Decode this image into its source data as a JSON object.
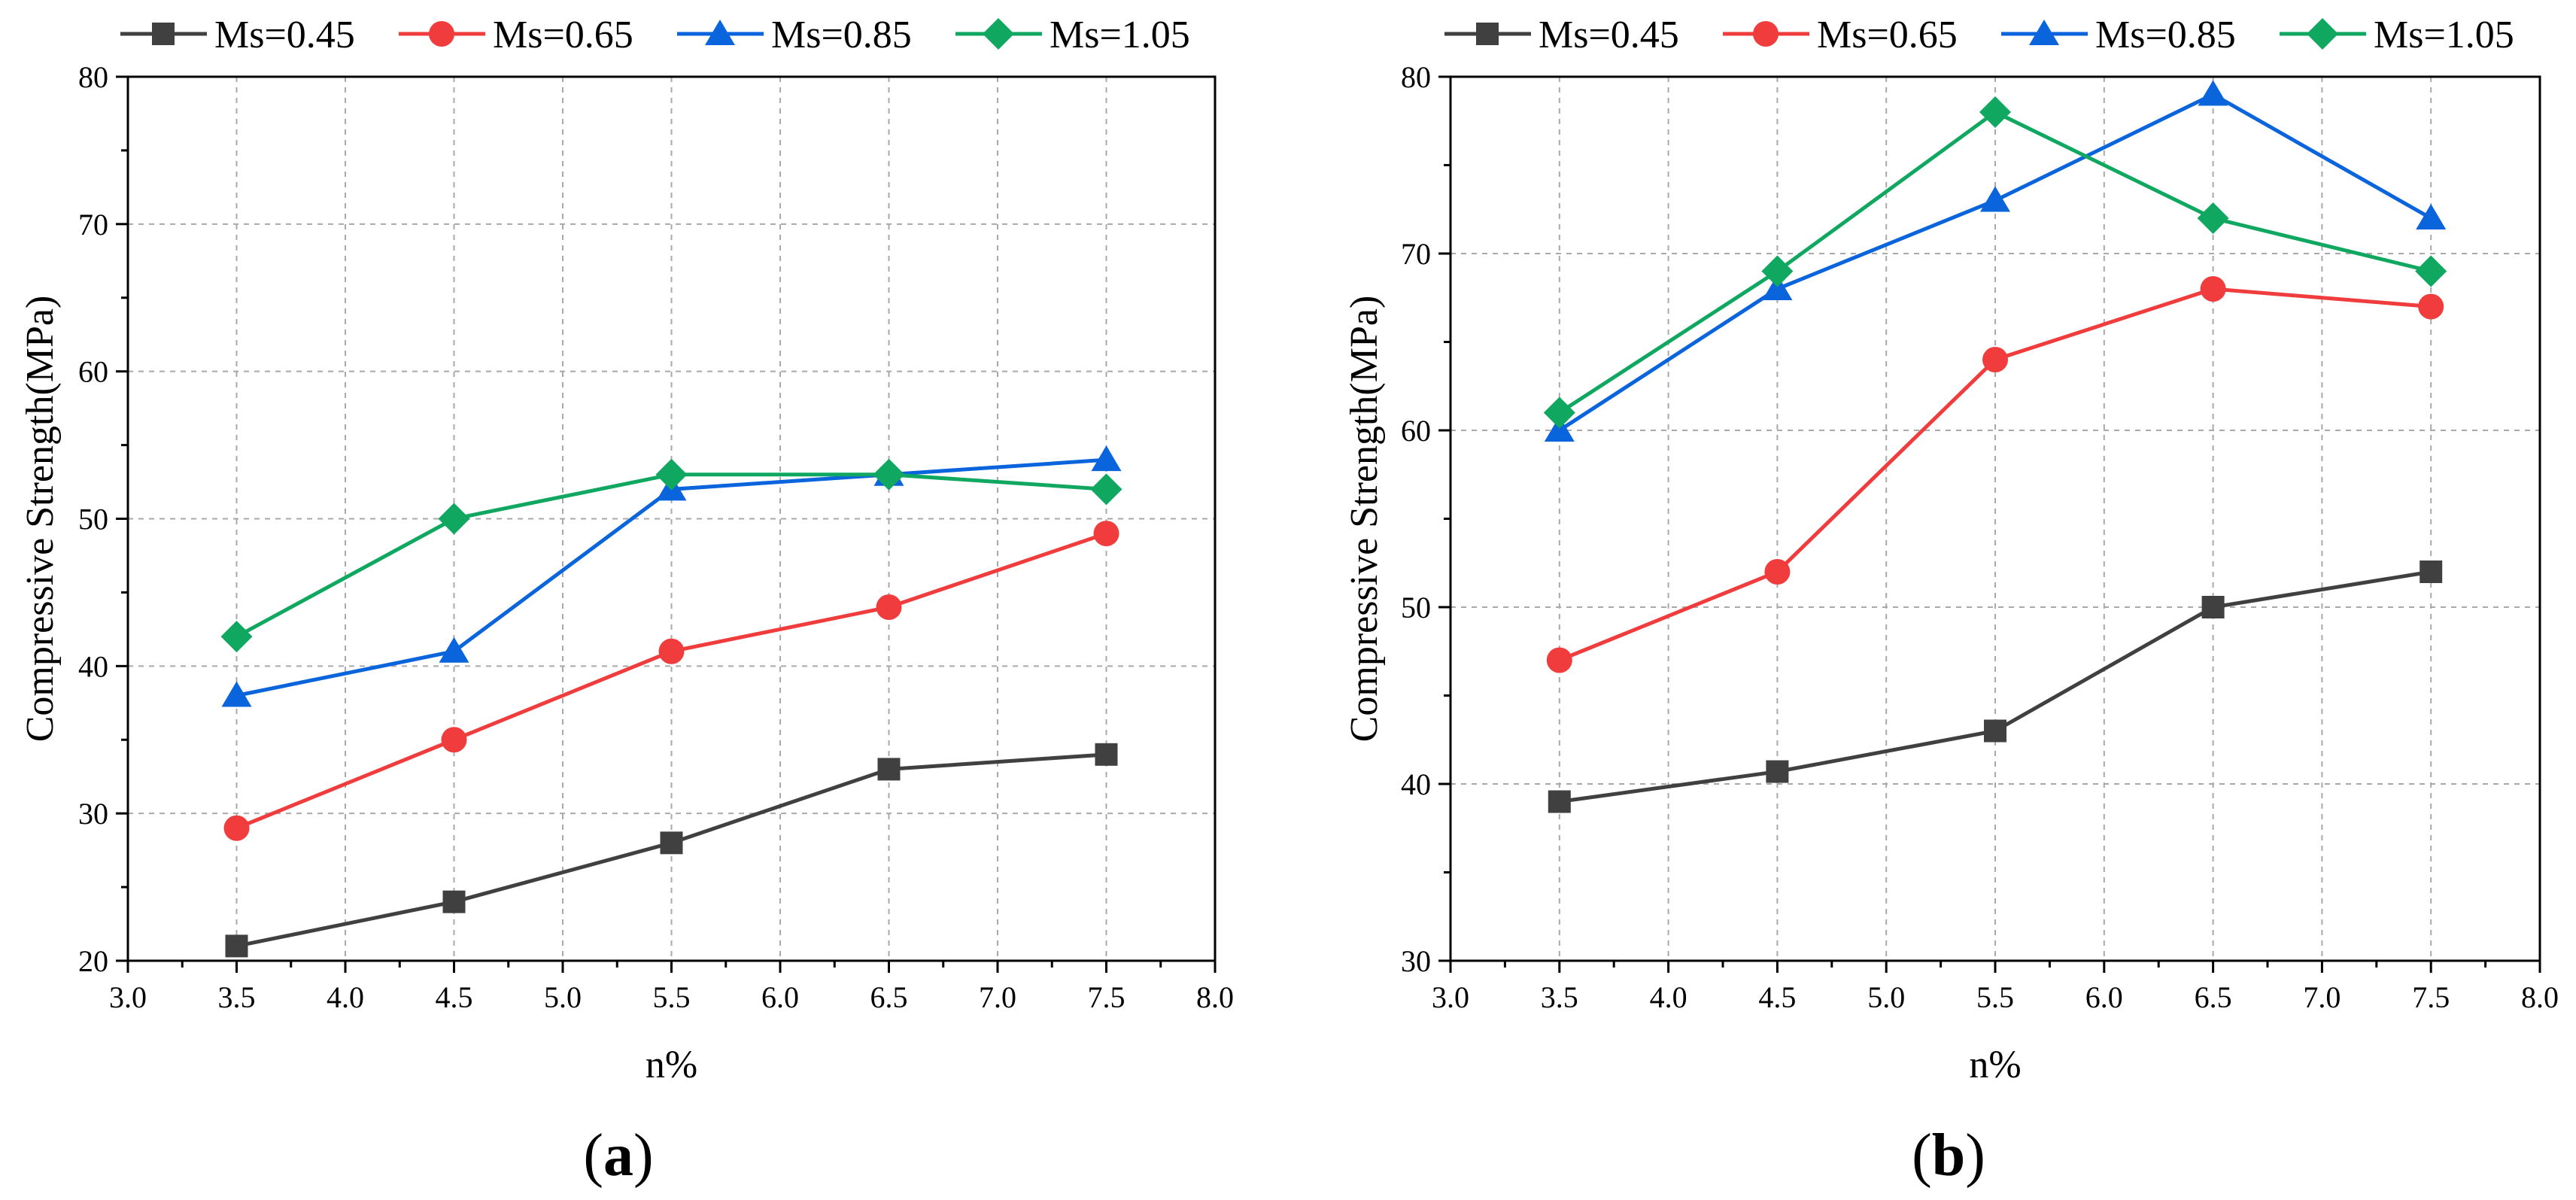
{
  "chart_data": [
    {
      "type": "line",
      "panel_label": "(a)",
      "panel_letter": "a",
      "xlabel": "n%",
      "ylabel": "Compressive Strength(MPa)",
      "xlim": [
        3.0,
        8.0
      ],
      "ylim": [
        20,
        80
      ],
      "xticks": [
        3.0,
        3.5,
        4.0,
        4.5,
        5.0,
        5.5,
        6.0,
        6.5,
        7.0,
        7.5,
        8.0
      ],
      "xtick_labels": [
        "3.0",
        "3.5",
        "4.0",
        "4.5",
        "5.0",
        "5.5",
        "6.0",
        "6.5",
        "7.0",
        "7.5",
        "8.0"
      ],
      "yticks": [
        20,
        30,
        40,
        50,
        60,
        70,
        80
      ],
      "ytick_labels": [
        "20",
        "30",
        "40",
        "50",
        "60",
        "70",
        "80"
      ],
      "grid": true,
      "legend_position": "top",
      "x": [
        3.5,
        4.5,
        5.5,
        6.5,
        7.5
      ],
      "series": [
        {
          "name": "Ms=0.45",
          "color": "#404040",
          "marker": "square",
          "values": [
            21,
            24,
            28,
            33,
            34
          ]
        },
        {
          "name": "Ms=0.65",
          "color": "#f03c3c",
          "marker": "circle",
          "values": [
            29,
            35,
            41,
            44,
            49
          ]
        },
        {
          "name": "Ms=0.85",
          "color": "#0a64dc",
          "marker": "triangle",
          "values": [
            38,
            41,
            52,
            53,
            54
          ]
        },
        {
          "name": "Ms=1.05",
          "color": "#10a860",
          "marker": "diamond",
          "values": [
            42,
            50,
            53,
            53,
            52
          ]
        }
      ]
    },
    {
      "type": "line",
      "panel_label": "(b)",
      "panel_letter": "b",
      "xlabel": "n%",
      "ylabel": "Compressive Strength(MPa)",
      "xlim": [
        3.0,
        8.0
      ],
      "ylim": [
        30,
        80
      ],
      "xticks": [
        3.0,
        3.5,
        4.0,
        4.5,
        5.0,
        5.5,
        6.0,
        6.5,
        7.0,
        7.5,
        8.0
      ],
      "xtick_labels": [
        "3.0",
        "3.5",
        "4.0",
        "4.5",
        "5.0",
        "5.5",
        "6.0",
        "6.5",
        "7.0",
        "7.5",
        "8.0"
      ],
      "yticks": [
        30,
        40,
        50,
        60,
        70,
        80
      ],
      "ytick_labels": [
        "30",
        "40",
        "50",
        "60",
        "70",
        "80"
      ],
      "grid": true,
      "legend_position": "top",
      "x": [
        3.5,
        4.5,
        5.5,
        6.5,
        7.5
      ],
      "series": [
        {
          "name": "Ms=0.45",
          "color": "#404040",
          "marker": "square",
          "values": [
            39,
            40.7,
            43,
            50,
            52
          ]
        },
        {
          "name": "Ms=0.65",
          "color": "#f03c3c",
          "marker": "circle",
          "values": [
            47,
            52,
            64,
            68,
            67
          ]
        },
        {
          "name": "Ms=0.85",
          "color": "#0a64dc",
          "marker": "triangle",
          "values": [
            60,
            68,
            73,
            79,
            72
          ]
        },
        {
          "name": "Ms=1.05",
          "color": "#10a860",
          "marker": "diamond",
          "values": [
            61,
            69,
            78,
            72,
            69
          ]
        }
      ]
    }
  ]
}
